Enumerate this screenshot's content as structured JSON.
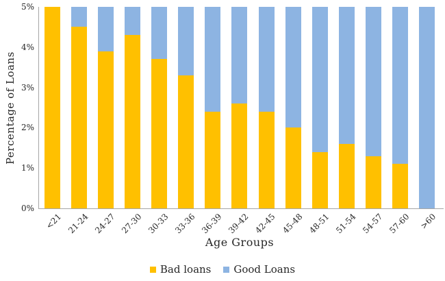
{
  "chart_data": {
    "type": "bar",
    "stacked": true,
    "title": "",
    "xlabel": "Age Groups",
    "ylabel": "Percentage of Loans",
    "ylim": [
      0,
      5
    ],
    "ytick_labels": [
      "0%",
      "1%",
      "2%",
      "3%",
      "4%",
      "5%"
    ],
    "grid": false,
    "legend_position": "bottom",
    "categories": [
      "<21",
      "21-24",
      "24-27",
      "27-30",
      "30-33",
      "33-36",
      "36-39",
      "39-42",
      "42-45",
      "45-48",
      "48-51",
      "51-54",
      "54-57",
      "57-60",
      ">60"
    ],
    "series": [
      {
        "name": "Bad loans",
        "color": "#FFC000",
        "values": [
          5.0,
          4.5,
          3.9,
          4.3,
          3.7,
          3.3,
          2.4,
          2.6,
          2.4,
          2.0,
          1.4,
          1.6,
          1.3,
          1.1,
          0.0
        ]
      },
      {
        "name": "Good Loans",
        "color": "#8DB4E2",
        "values": [
          0.0,
          0.5,
          1.1,
          0.7,
          1.3,
          1.7,
          2.6,
          2.4,
          2.6,
          3.0,
          3.6,
          3.4,
          3.7,
          3.9,
          5.0
        ]
      }
    ]
  },
  "colors": {
    "axis_line": "#a6a6a6",
    "text": "#262626"
  }
}
